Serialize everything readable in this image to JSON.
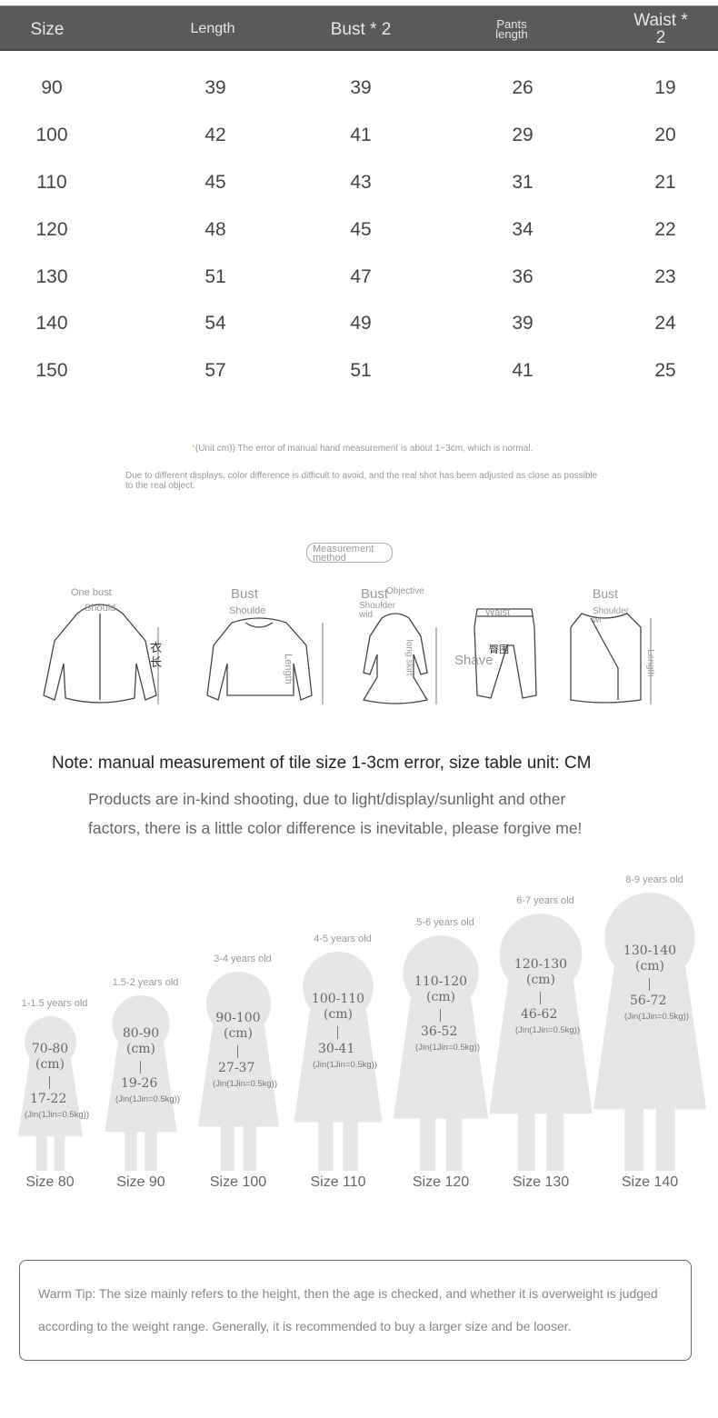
{
  "table": {
    "headers": [
      "Size",
      "Length",
      "Bust * 2",
      "Pants length",
      "Waist * 2"
    ],
    "rows": [
      [
        "90",
        "39",
        "39",
        "26",
        "19"
      ],
      [
        "100",
        "42",
        "41",
        "29",
        "20"
      ],
      [
        "110",
        "45",
        "43",
        "31",
        "21"
      ],
      [
        "120",
        "48",
        "45",
        "34",
        "22"
      ],
      [
        "130",
        "51",
        "47",
        "36",
        "23"
      ],
      [
        "140",
        "54",
        "49",
        "39",
        "24"
      ],
      [
        "150",
        "57",
        "51",
        "41",
        "25"
      ]
    ]
  },
  "notes": {
    "unit": "(Unit cm)) The error of manual hand measurement is about 1~3cm, which is normal.",
    "display": "Due to different displays, color difference is difficult to avoid, and the real shot has been adjusted as close as possible to the real object."
  },
  "measurement": {
    "title": "Measurement method",
    "labels": {
      "jacket": [
        "One bust",
        "Should",
        "衣长"
      ],
      "sweater": [
        "Bust",
        "Shoulde",
        "Length"
      ],
      "dress": [
        "Bust",
        "Objective",
        "Shoulder wid",
        "long skirt"
      ],
      "pants": [
        "Waist",
        "臀围",
        "Shave"
      ],
      "vest": [
        "Bust",
        "Shoulder wi",
        "Length"
      ]
    }
  },
  "note_main": "Note: manual measurement of tile size 1-3cm error, size table unit: CM",
  "note_para": [
    "Products are in-kind shooting, due to light/display/sunlight and other",
    "factors, there is a little color difference is inevitable, please forgive me!"
  ],
  "kids": [
    {
      "age": "1-1.5 years old",
      "height": "70-80",
      "unit": "(cm)",
      "weight": "17-22",
      "jin": "(Jin(1Jin=0.5kg))",
      "size": "Size 80"
    },
    {
      "age": "1.5-2 years old",
      "height": "80-90",
      "unit": "(cm)",
      "weight": "19-26",
      "jin": "(Jin(1Jin=0.5kg))",
      "size": "Size 90"
    },
    {
      "age": "3-4 years old",
      "height": "90-100",
      "unit": "(cm)",
      "weight": "27-37",
      "jin": "(Jin(1Jin=0.5kg))",
      "size": "Size 100"
    },
    {
      "age": "4-5 years old",
      "height": "100-110",
      "unit": "(cm)",
      "weight": "30-41",
      "jin": "(Jin(1Jin=0.5kg))",
      "size": "Size 110"
    },
    {
      "age": "5-6 years old",
      "height": "110-120",
      "unit": "(cm)",
      "weight": "36-52",
      "jin": "(Jin(1Jin=0.5kg))",
      "size": "Size 120"
    },
    {
      "age": "6-7 years old",
      "height": "120-130",
      "unit": "(cm)",
      "weight": "46-62",
      "jin": "(Jin(1Jin=0.5kg))",
      "size": "Size 130"
    },
    {
      "age": "8-9 years old",
      "height": "130-140",
      "unit": "(cm)",
      "weight": "56-72",
      "jin": "(Jin(1Jin=0.5kg))",
      "size": "Size 140"
    }
  ],
  "tip": "Warm Tip: The size mainly refers to the height, then the age is checked, and whether it is overweight is judged according to the weight range. Generally, it is recommended to buy a larger size and be looser."
}
